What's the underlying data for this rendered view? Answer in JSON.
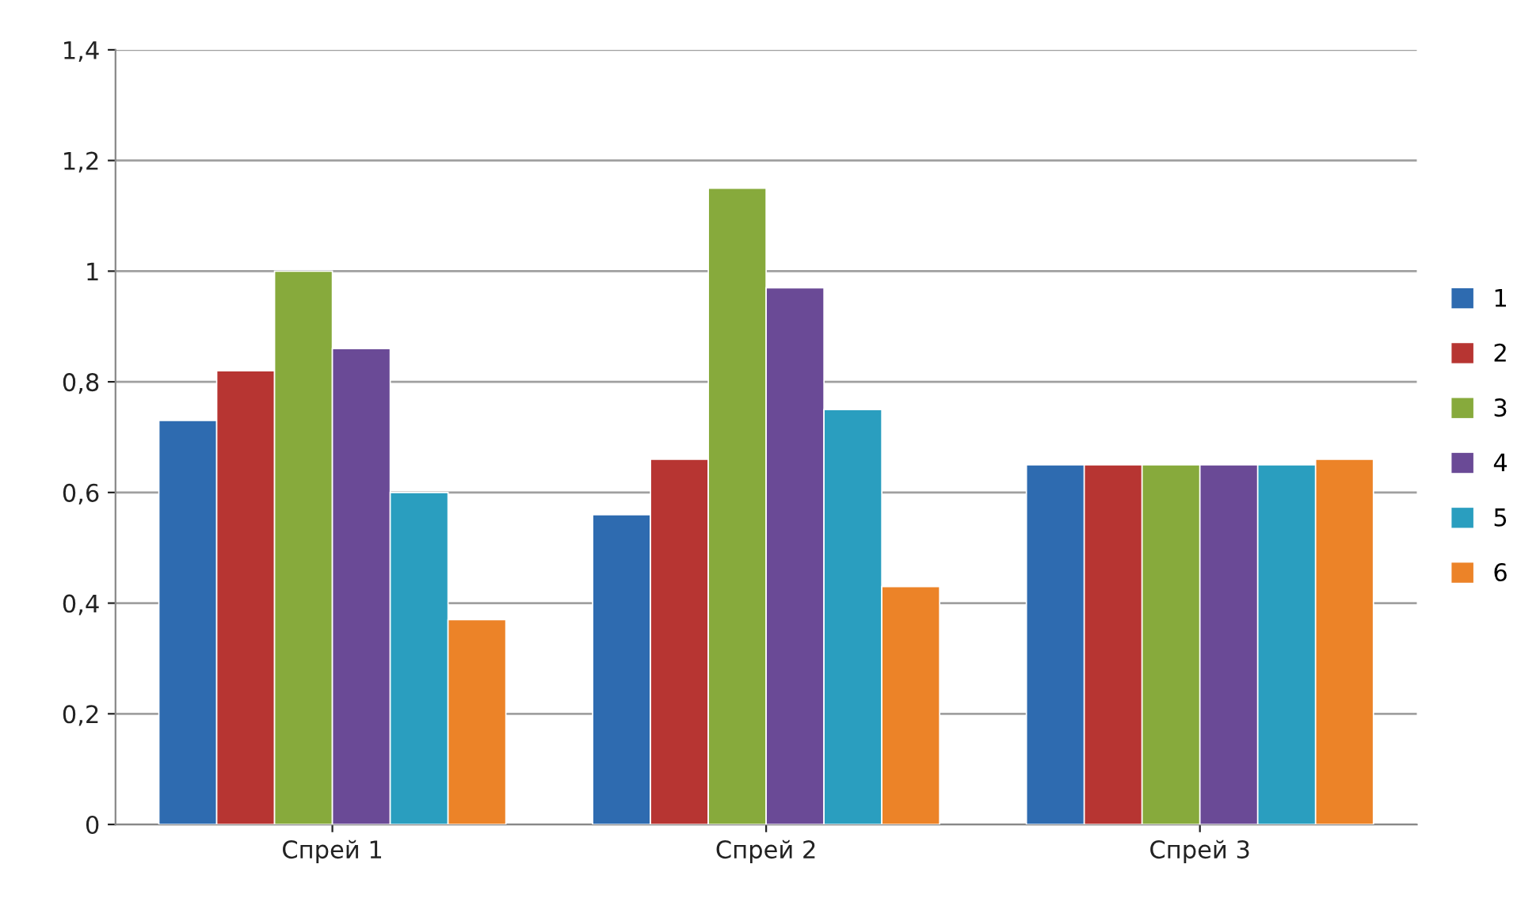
{
  "chart_data": {
    "type": "bar",
    "categories": [
      "Спрей 1",
      "Спрей 2",
      "Спрей 3"
    ],
    "series": [
      {
        "name": "1",
        "color": "#2e6bb0",
        "values": [
          0.73,
          0.56,
          0.65
        ]
      },
      {
        "name": "2",
        "color": "#b73532",
        "values": [
          0.82,
          0.66,
          0.65
        ]
      },
      {
        "name": "3",
        "color": "#87aa3c",
        "values": [
          1.0,
          1.15,
          0.65
        ]
      },
      {
        "name": "4",
        "color": "#6a4a96",
        "values": [
          0.86,
          0.97,
          0.65
        ]
      },
      {
        "name": "5",
        "color": "#2a9ebf",
        "values": [
          0.6,
          0.75,
          0.65
        ]
      },
      {
        "name": "6",
        "color": "#ec8328",
        "values": [
          0.37,
          0.43,
          0.66
        ]
      }
    ],
    "ylim": [
      0,
      1.4
    ],
    "yticks": [
      0,
      {
        "value": 0.2,
        "label": "0,2"
      },
      {
        "value": 0.4,
        "label": "0,4"
      },
      {
        "value": 0.6,
        "label": "0,6"
      },
      {
        "value": 0.8,
        "label": "0,8"
      },
      1,
      {
        "value": 1.2,
        "label": "1,2"
      },
      {
        "value": 1.4,
        "label": "1,4"
      }
    ],
    "grid": "y",
    "legend": "right"
  }
}
